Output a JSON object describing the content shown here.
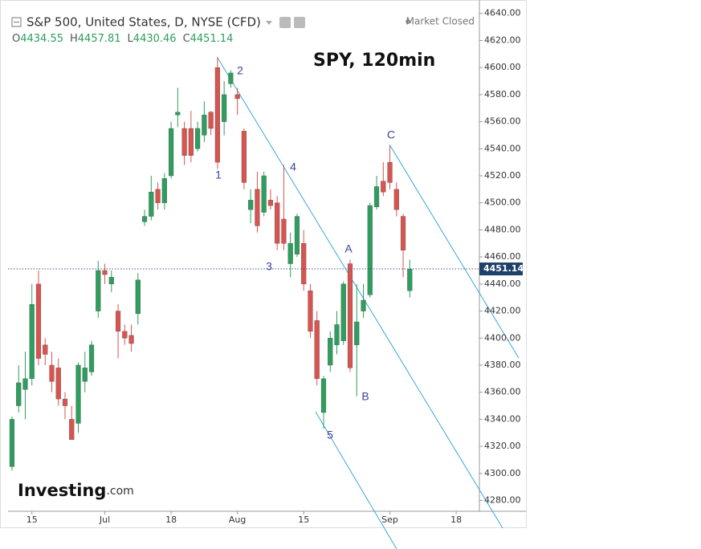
{
  "chart_data": {
    "type": "candlestick",
    "title": "S&P 500, United States, D, NYSE (CFD)",
    "status": "Market Closed",
    "annotation": "SPY, 120min",
    "brand": "Investing",
    "brand_suffix": ".com",
    "ohlc_legend": {
      "labels": [
        "O",
        "H",
        "L",
        "C"
      ],
      "values": [
        4434.55,
        4457.81,
        4430.46,
        4451.14
      ]
    },
    "wave_labels": [
      "1",
      "2",
      "3",
      "4",
      "5",
      "A",
      "B",
      "C"
    ],
    "last_price": 4451.14,
    "up_color": "#2e9e5e",
    "down_color": "#d9534f",
    "x": [
      0,
      1,
      2,
      3,
      4,
      5,
      6,
      7,
      8,
      9,
      10,
      11,
      12,
      13,
      14,
      15,
      16,
      17,
      18,
      19,
      20,
      21,
      22,
      23,
      24,
      25,
      26,
      27,
      28,
      29,
      30,
      31,
      32,
      33,
      34,
      35,
      36,
      37,
      38,
      39,
      40,
      41,
      42,
      43,
      44,
      45,
      46,
      47,
      48,
      49,
      50,
      51,
      52,
      53,
      54,
      55,
      56,
      57,
      58,
      59,
      60
    ],
    "open": [
      4305,
      4350,
      4362,
      4370,
      4440,
      4395,
      4380,
      4378,
      4355,
      4340,
      4337,
      4368,
      4375,
      4420,
      4450,
      4440,
      4420,
      4405,
      4402,
      4418,
      4486,
      4490,
      4510,
      4500,
      4520,
      4565,
      4555,
      4555,
      4540,
      4550,
      4567,
      4600,
      4560,
      4588,
      4580,
      4553,
      4495,
      4510,
      4493,
      4502,
      4500,
      4488,
      4455,
      4462,
      4470,
      4435,
      4413,
      4345,
      4380,
      4395,
      4398,
      4455,
      4395,
      4420,
      4432,
      4497,
      4516,
      4530,
      4510,
      4490,
      4435
    ],
    "high": [
      4342,
      4380,
      4390,
      4440,
      4450,
      4400,
      4390,
      4385,
      4360,
      4350,
      4382,
      4390,
      4398,
      4457,
      4455,
      4450,
      4425,
      4410,
      4410,
      4448,
      4495,
      4520,
      4515,
      4522,
      4560,
      4585,
      4560,
      4568,
      4560,
      4575,
      4568,
      4608,
      4590,
      4598,
      4585,
      4555,
      4510,
      4523,
      4523,
      4510,
      4505,
      4528,
      4478,
      4492,
      4480,
      4440,
      4420,
      4372,
      4405,
      4420,
      4442,
      4458,
      4440,
      4440,
      4500,
      4520,
      4530,
      4542,
      4515,
      4492,
      4458
    ],
    "low": [
      4302,
      4345,
      4340,
      4365,
      4380,
      4380,
      4360,
      4350,
      4340,
      4325,
      4330,
      4360,
      4372,
      4415,
      4440,
      4434,
      4385,
      4395,
      4390,
      4410,
      4483,
      4487,
      4495,
      4495,
      4518,
      4556,
      4528,
      4530,
      4538,
      4545,
      4550,
      4525,
      4550,
      4585,
      4565,
      4510,
      4485,
      4478,
      4490,
      4495,
      4465,
      4465,
      4445,
      4460,
      4435,
      4400,
      4365,
      4333,
      4375,
      4388,
      4395,
      4375,
      4357,
      4415,
      4430,
      4495,
      4505,
      4510,
      4490,
      4445,
      4430
    ],
    "close": [
      4340,
      4367,
      4370,
      4425,
      4385,
      4388,
      4368,
      4355,
      4350,
      4325,
      4380,
      4378,
      4395,
      4450,
      4447,
      4445,
      4405,
      4400,
      4396,
      4443,
      4490,
      4508,
      4500,
      4518,
      4555,
      4567,
      4535,
      4535,
      4555,
      4565,
      4555,
      4530,
      4580,
      4596,
      4577,
      4515,
      4502,
      4483,
      4520,
      4498,
      4470,
      4470,
      4470,
      4490,
      4440,
      4405,
      4370,
      4370,
      4400,
      4410,
      4440,
      4378,
      4412,
      4428,
      4498,
      4512,
      4508,
      4515,
      4495,
      4465,
      4451
    ],
    "xlim": [
      -0.6,
      70.5
    ],
    "xticks": [
      {
        "value": 3,
        "label": "15"
      },
      {
        "value": 14,
        "label": "Jul"
      },
      {
        "value": 24,
        "label": "18"
      },
      {
        "value": 34,
        "label": "Aug"
      },
      {
        "value": 44,
        "label": "15"
      },
      {
        "value": 57,
        "label": "Sep"
      },
      {
        "value": 67,
        "label": "18"
      }
    ],
    "ylim": [
      4272,
      4644
    ],
    "yticks": [
      {
        "value": 4280,
        "label": "4280.00"
      },
      {
        "value": 4300,
        "label": "4300.00"
      },
      {
        "value": 4320,
        "label": "4320.00"
      },
      {
        "value": 4340,
        "label": "4340.00"
      },
      {
        "value": 4360,
        "label": "4360.00"
      },
      {
        "value": 4380,
        "label": "4380.00"
      },
      {
        "value": 4400,
        "label": "4400.00"
      },
      {
        "value": 4420,
        "label": "4420.00"
      },
      {
        "value": 4440,
        "label": "4440.00"
      },
      {
        "value": 4460,
        "label": "4460.00"
      },
      {
        "value": 4480,
        "label": "4480.00"
      },
      {
        "value": 4500,
        "label": "4500.00"
      },
      {
        "value": 4520,
        "label": "4520.00"
      },
      {
        "value": 4540,
        "label": "4540.00"
      },
      {
        "value": 4560,
        "label": "4560.00"
      },
      {
        "value": 4580,
        "label": "4580.00"
      },
      {
        "value": 4600,
        "label": "4600.00"
      },
      {
        "value": 4620,
        "label": "4620.00"
      },
      {
        "value": 4640,
        "label": "4640.00"
      }
    ]
  }
}
